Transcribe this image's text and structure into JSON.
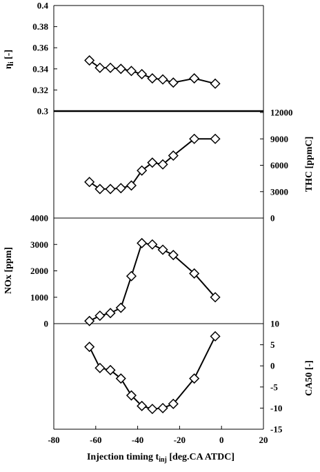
{
  "chart_data": [
    {
      "type": "line",
      "panel": 1,
      "ylabel": "η_i [-]",
      "y_axis_side": "left",
      "ylim": [
        0.3,
        0.4
      ],
      "yticks": [
        0.3,
        0.32,
        0.34,
        0.36,
        0.38,
        0.4
      ],
      "ytick_labels": [
        "0.3",
        "0.32",
        "0.34",
        "0.36",
        "0.38",
        "0.4"
      ],
      "x": [
        -63,
        -58,
        -53,
        -48,
        -43,
        -38,
        -33,
        -28,
        -23,
        -13,
        -3
      ],
      "y": [
        0.348,
        0.341,
        0.341,
        0.34,
        0.338,
        0.335,
        0.331,
        0.33,
        0.327,
        0.331,
        0.326
      ],
      "marker": "diamond-open",
      "grid": false
    },
    {
      "type": "line",
      "panel": 2,
      "ylabel": "THC [ppmC]",
      "y_axis_side": "right",
      "ylim": [
        0,
        12000
      ],
      "yticks": [
        0,
        3000,
        6000,
        9000,
        12000
      ],
      "ytick_labels": [
        "0",
        "3000",
        "6000",
        "9000",
        "12000"
      ],
      "x": [
        -63,
        -58,
        -53,
        -48,
        -43,
        -38,
        -33,
        -28,
        -23,
        -13,
        -3
      ],
      "y": [
        4100,
        3300,
        3300,
        3400,
        3700,
        5400,
        6300,
        6100,
        7100,
        9000,
        9000
      ],
      "marker": "diamond-open",
      "grid": false
    },
    {
      "type": "line",
      "panel": 3,
      "ylabel": "NOx [ppm]",
      "y_axis_side": "left",
      "ylim": [
        0,
        4000
      ],
      "yticks": [
        0,
        1000,
        2000,
        3000,
        4000
      ],
      "ytick_labels": [
        "0",
        "1000",
        "2000",
        "3000",
        "4000"
      ],
      "x": [
        -63,
        -58,
        -53,
        -48,
        -43,
        -38,
        -33,
        -28,
        -23,
        -13,
        -3
      ],
      "y": [
        100,
        300,
        400,
        600,
        1800,
        3050,
        3000,
        2800,
        2600,
        1900,
        1000
      ],
      "marker": "diamond-open",
      "grid": false
    },
    {
      "type": "line",
      "panel": 4,
      "ylabel": "CA50 [-]",
      "y_axis_side": "right",
      "ylim": [
        -15,
        10
      ],
      "yticks": [
        -15,
        -10,
        -5,
        0,
        5,
        10
      ],
      "ytick_labels": [
        "-15",
        "-10",
        "-5",
        "0",
        "5",
        "10"
      ],
      "x": [
        -63,
        -58,
        -53,
        -48,
        -43,
        -38,
        -33,
        -28,
        -23,
        -13,
        -3
      ],
      "y": [
        4.5,
        -0.5,
        -1,
        -3,
        -7,
        -9.5,
        -10.2,
        -10,
        -9,
        -3,
        7
      ],
      "marker": "diamond-open",
      "grid": false
    }
  ],
  "xaxis": {
    "label_main": "Injection timing t",
    "label_sub": "inj",
    "label_unit": " [deg.CA ATDC]",
    "xlim": [
      -80,
      20
    ],
    "xticks": [
      -80,
      -60,
      -40,
      -20,
      0,
      20
    ],
    "xtick_labels": [
      "-80",
      "-60",
      "-40",
      "-20",
      "0",
      "20"
    ]
  }
}
